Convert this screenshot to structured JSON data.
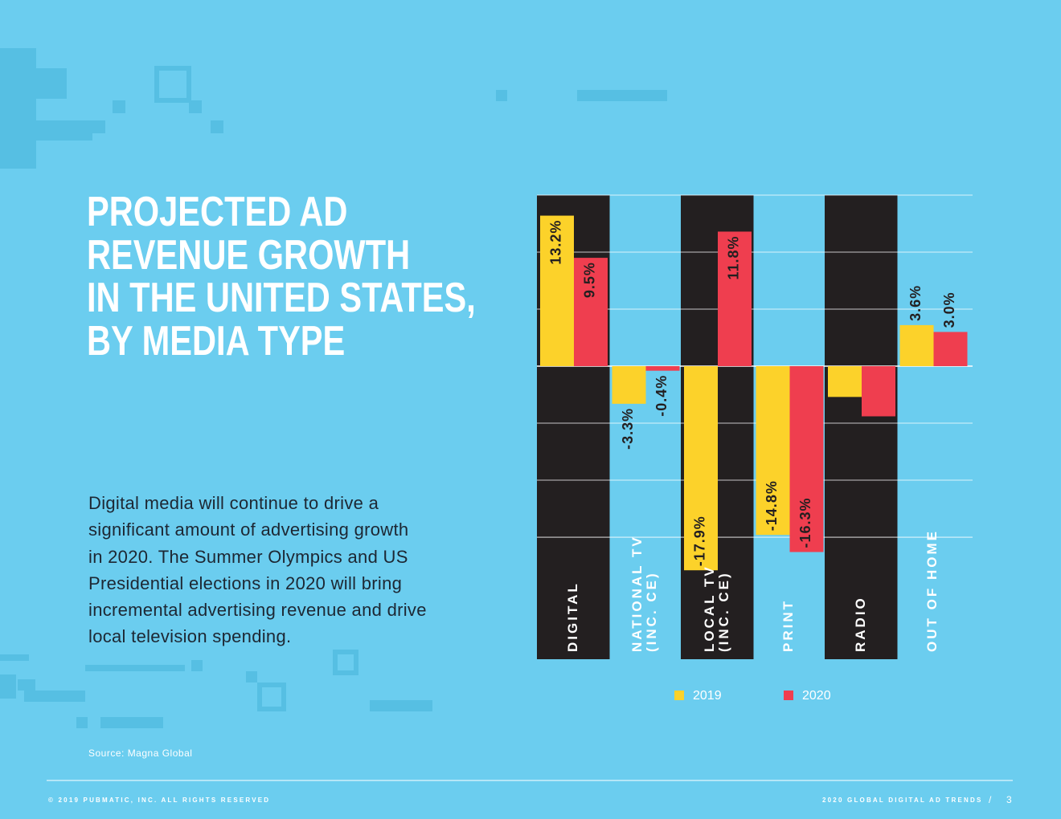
{
  "header": {
    "title": "PROJECTED AD\nREVENUE GROWTH\nIN THE UNITED STATES,\nBY MEDIA TYPE"
  },
  "body": "Digital media will continue to drive a\nsignificant amount of advertising growth\nin 2020. The Summer Olympics and US\nPresidential elections in 2020 will bring\nincremental advertising revenue and drive\nlocal television spending.",
  "source": "Source: Magna Global",
  "footer": {
    "copyright": "© 2019 PUBMATIC, INC. ALL RIGHTS RESERVED",
    "publication": "2020 GLOBAL DIGITAL AD TRENDS",
    "separator": "/",
    "page": "3"
  },
  "chart_data": {
    "type": "bar",
    "categories": [
      "DIGITAL",
      "NATIONAL TV\n(INC. CE)",
      "LOCAL TV\n(INC. CE)",
      "PRINT",
      "RADIO",
      "OUT OF HOME"
    ],
    "series": [
      {
        "name": "2019",
        "color": "#fcd22a",
        "values": [
          13.2,
          -3.3,
          -17.9,
          -14.8,
          -2.7,
          3.6
        ],
        "value_labels": [
          "13.2%",
          "-3.3%",
          "-17.9%",
          "-14.8%",
          null,
          "3.6%"
        ]
      },
      {
        "name": "2020",
        "color": "#ef3e4f",
        "values": [
          9.5,
          -0.4,
          11.8,
          -16.3,
          -4.4,
          3.0
        ],
        "value_labels": [
          "9.5%",
          "-0.4%",
          "11.8%",
          "-16.3%",
          null,
          "3.0%"
        ]
      }
    ],
    "ylim": [
      -25.7,
      15
    ],
    "yticks": [
      15,
      10,
      5,
      0,
      -5,
      -10,
      -15
    ],
    "grid": true,
    "legend": "bottom"
  }
}
